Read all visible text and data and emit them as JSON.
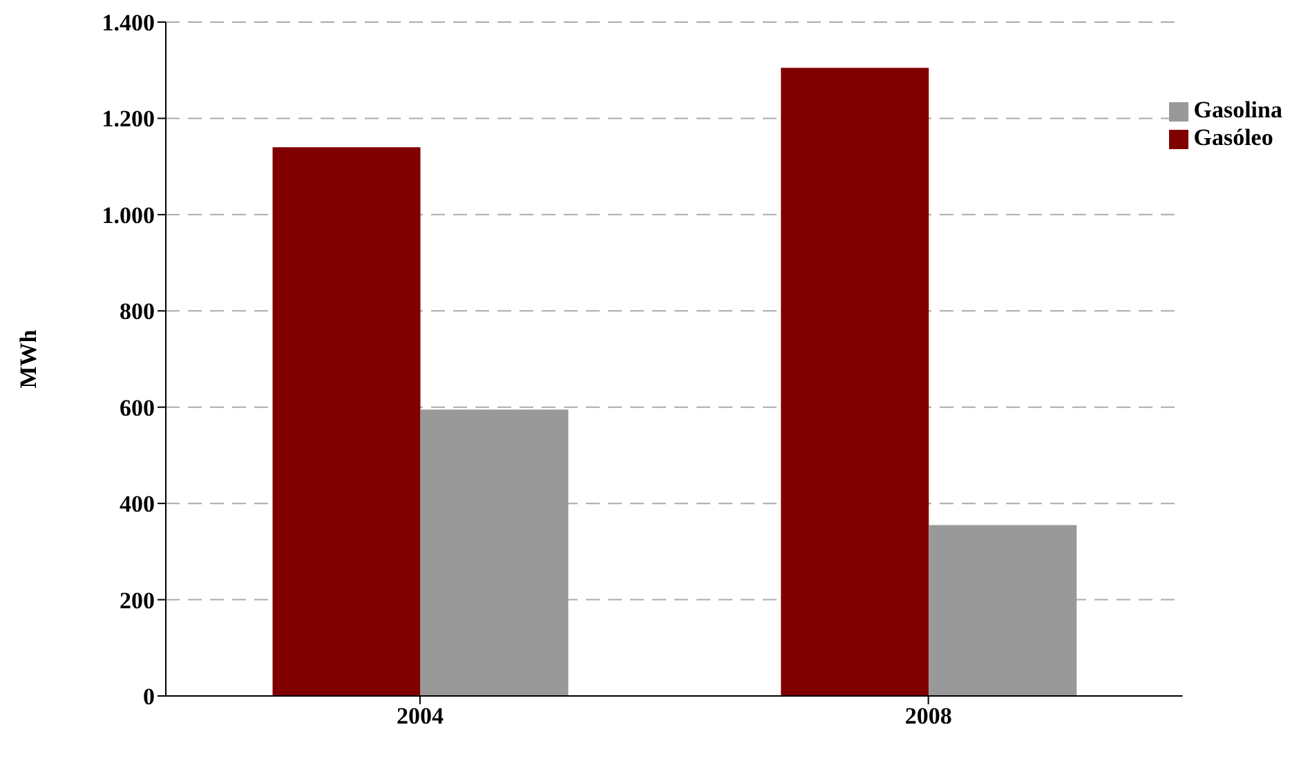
{
  "chart_data": {
    "type": "bar",
    "ylabel": "MWh",
    "categories": [
      "2004",
      "2008"
    ],
    "series": [
      {
        "name": "Gasóleo",
        "color": "#800000",
        "values": [
          1140,
          1305
        ]
      },
      {
        "name": "Gasolina",
        "color": "#999999",
        "values": [
          595,
          355
        ]
      }
    ],
    "ylim": [
      0,
      1400
    ],
    "yticks": [
      0,
      200,
      400,
      600,
      800,
      {
        "value": 1000,
        "label": "1.000"
      },
      {
        "value": 1200,
        "label": "1.200"
      },
      {
        "value": 1400,
        "label": "1.400"
      }
    ],
    "grid": "y",
    "legend": "top right"
  }
}
